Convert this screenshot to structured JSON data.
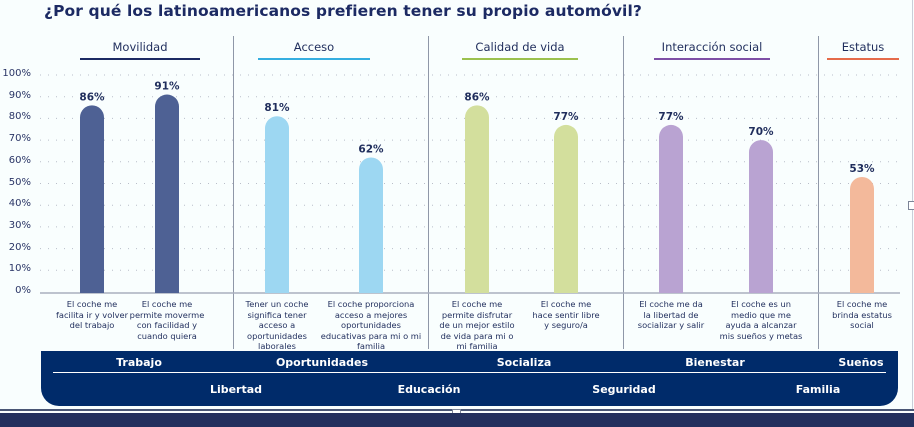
{
  "title": "¿Por qué los latinoamericanos prefieren tener su propio automóvil?",
  "categories": [
    {
      "name": "Movilidad",
      "color": "#1c2a63"
    },
    {
      "name": "Acceso",
      "color": "#35aee0"
    },
    {
      "name": "Calidad de vida",
      "color": "#9bc14e"
    },
    {
      "name": "Interacción social",
      "color": "#7e4fa6"
    },
    {
      "name": "Estatus",
      "color": "#e56b4a"
    }
  ],
  "bottom_band": {
    "row1": [
      "Trabajo",
      "Oportunidades",
      "Socializa",
      "Bienestar",
      "Sueños"
    ],
    "row2": [
      "Libertad",
      "Educación",
      "Seguridad",
      "Familia"
    ]
  },
  "chart_data": {
    "type": "bar",
    "title": "¿Por qué los latinoamericanos prefieren tener su propio automóvil?",
    "xlabel": "",
    "ylabel": "",
    "ylim": [
      0,
      100
    ],
    "yticks": [
      "0%",
      "10%",
      "20%",
      "30%",
      "40%",
      "50%",
      "60%",
      "70%",
      "80%",
      "90%",
      "100%"
    ],
    "grid": true,
    "categories": [
      "El coche me facilita ir y volver del trabajo",
      "El coche me permite moverme con facilidad y cuando quiera",
      "Tener un coche significa tener acceso a oportunidades laborales",
      "El coche proporciona acceso a mejores oportunidades educativas para mi o mi familia",
      "El coche me permite disfrutar de un mejor estilo de vida para mi o mi familia",
      "El coche me hace sentir libre y seguro/a",
      "El coche me da la libertad de socializar y salir",
      "El coche es un medio que me ayuda a alcanzar mis sueños y metas",
      "El coche me brinda estatus social"
    ],
    "values": [
      86,
      91,
      81,
      62,
      86,
      77,
      77,
      70,
      53
    ],
    "value_labels": [
      "86%",
      "91%",
      "81%",
      "62%",
      "86%",
      "77%",
      "77%",
      "70%",
      "53%"
    ],
    "groups": [
      "Movilidad",
      "Movilidad",
      "Acceso",
      "Acceso",
      "Calidad de vida",
      "Calidad de vida",
      "Interacción social",
      "Interacción social",
      "Estatus"
    ],
    "colors": [
      "#4e6194",
      "#4e6194",
      "#9dd7f2",
      "#9dd7f2",
      "#d3df9d",
      "#d3df9d",
      "#b9a3d2",
      "#b9a3d2",
      "#f3b99b"
    ],
    "label_lines": [
      [
        "El coche me",
        "facilita ir y volver",
        "del trabajo"
      ],
      [
        "El coche me",
        "permite moverme",
        "con facilidad y",
        "cuando quiera"
      ],
      [
        "Tener un coche",
        "significa tener",
        "acceso a",
        "oportunidades",
        "laborales"
      ],
      [
        "El coche proporciona",
        "acceso a mejores",
        "oportunidades",
        "educativas para mi o mi",
        "familia"
      ],
      [
        "El coche me",
        "permite disfrutar",
        "de un mejor estilo",
        "de vida para mi o",
        "mi familia"
      ],
      [
        "El coche me",
        "hace sentir libre",
        "y seguro/a"
      ],
      [
        "El coche me da",
        "la libertad de",
        "socializar y salir"
      ],
      [
        "El coche es un",
        "medio que me",
        "ayuda a alcanzar",
        "mis sueños y metas"
      ],
      [
        "El coche me",
        "brinda estatus",
        "social"
      ]
    ]
  }
}
